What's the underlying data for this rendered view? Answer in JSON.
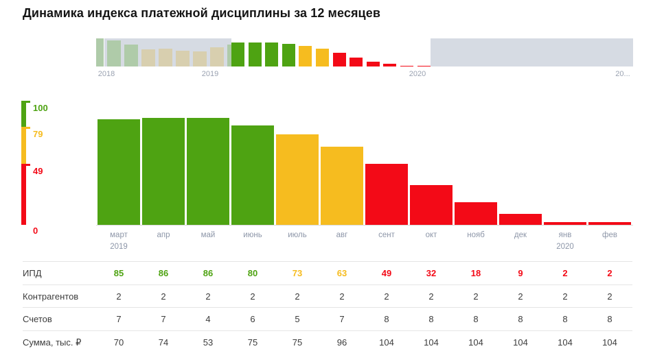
{
  "title": "Динамика индекса платежной дисциплины за 12 месяцев",
  "colors": {
    "green": "#4EA312",
    "yellow": "#F6BC1F",
    "red": "#F30A17",
    "faded_green": "#AFCBA9",
    "faded_tan": "#D8CFAF",
    "overlay": "#D6DBE3"
  },
  "navigator": {
    "year_labels": [
      "2018",
      "2019",
      "2020",
      "20..."
    ],
    "history_bars": [
      {
        "value": 100,
        "tone": "faded_green"
      },
      {
        "value": 92,
        "tone": "faded_green"
      },
      {
        "value": 78,
        "tone": "faded_green"
      },
      {
        "value": 61,
        "tone": "faded_tan"
      },
      {
        "value": 63,
        "tone": "faded_tan"
      },
      {
        "value": 56,
        "tone": "faded_tan"
      },
      {
        "value": 53,
        "tone": "faded_tan"
      },
      {
        "value": 69,
        "tone": "faded_tan"
      },
      {
        "value": 78,
        "tone": "faded_green"
      }
    ]
  },
  "scale": {
    "ticks": [
      {
        "label": "100",
        "value": 100,
        "color": "#4EA312"
      },
      {
        "label": "79",
        "value": 79,
        "color": "#F6BC1F"
      },
      {
        "label": "49",
        "value": 49,
        "color": "#F30A17"
      },
      {
        "label": "0",
        "value": 0,
        "color": "#F30A17"
      }
    ]
  },
  "chart_data": {
    "type": "bar",
    "title": "Динамика индекса платежной дисциплины за 12 месяцев",
    "categories": [
      "март 2019",
      "апр",
      "май",
      "июнь",
      "июль",
      "авг",
      "сент",
      "окт",
      "нояб",
      "дек",
      "янв 2020",
      "фев"
    ],
    "values": [
      85,
      86,
      86,
      80,
      73,
      63,
      49,
      32,
      18,
      9,
      2,
      2
    ],
    "ylim": [
      0,
      100
    ],
    "ylabel": "ИПД",
    "xlabel": "",
    "grid": false,
    "legend": false,
    "color_rule": "value > 79 green, 50..79 yellow, <= 49 red",
    "navigator_selected_range": "март 2019 — фев 2020"
  },
  "x_axis": [
    {
      "month": "март",
      "year": "2019"
    },
    {
      "month": "апр"
    },
    {
      "month": "май"
    },
    {
      "month": "июнь"
    },
    {
      "month": "июль"
    },
    {
      "month": "авг"
    },
    {
      "month": "сент"
    },
    {
      "month": "окт"
    },
    {
      "month": "нояб"
    },
    {
      "month": "дек"
    },
    {
      "month": "янв",
      "year": "2020"
    },
    {
      "month": "фев"
    }
  ],
  "table": {
    "rows": [
      {
        "label": "ИПД",
        "styled": "status",
        "values": [
          "85",
          "86",
          "86",
          "80",
          "73",
          "63",
          "49",
          "32",
          "18",
          "9",
          "2",
          "2"
        ]
      },
      {
        "label": "Контрагентов",
        "values": [
          "2",
          "2",
          "2",
          "2",
          "2",
          "2",
          "2",
          "2",
          "2",
          "2",
          "2",
          "2"
        ]
      },
      {
        "label": "Счетов",
        "values": [
          "7",
          "7",
          "4",
          "6",
          "5",
          "7",
          "8",
          "8",
          "8",
          "8",
          "8",
          "8"
        ]
      },
      {
        "label": "Сумма, тыс. ₽",
        "values": [
          "70",
          "74",
          "53",
          "75",
          "75",
          "96",
          "104",
          "104",
          "104",
          "104",
          "104",
          "104"
        ]
      }
    ]
  }
}
